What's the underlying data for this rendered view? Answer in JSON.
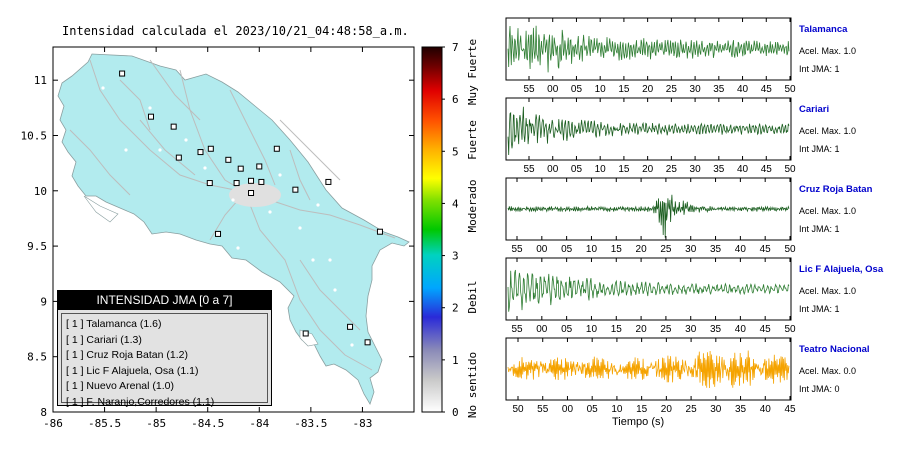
{
  "map": {
    "title": "Intensidad calculada el 2023/10/21_04:48:58_a.m.",
    "x_ticks": [
      "-86",
      "-85.5",
      "-85",
      "-84.5",
      "-84",
      "-83.5",
      "-83"
    ],
    "y_ticks": [
      "11",
      "10.5",
      "10",
      "9.5",
      "9",
      "8.5",
      "8"
    ],
    "land_color": "#b2ebee",
    "station_icon": "square-marker-icon"
  },
  "colorbar": {
    "ticks": [
      "0",
      "1",
      "2",
      "3",
      "4",
      "5",
      "6",
      "7"
    ],
    "labels": [
      "No sentido",
      "Debil",
      "Moderado",
      "Fuerte",
      "Muy Fuerte"
    ]
  },
  "legend": {
    "header": "INTENSIDAD JMA [0 a 7]",
    "items": [
      "[ 1 ]  Talamanca (1.6)",
      "[ 1 ]  Cariari (1.3)",
      "[ 1 ]  Cruz Roja Batan (1.2)",
      "[ 1 ]  Lic F Alajuela, Osa (1.1)",
      "[ 1 ]  Nuevo Arenal (1.0)",
      "[ 1 ]  F. Naranjo,Corredores (1.1)"
    ]
  },
  "stations": [
    {
      "name": "Talamanca",
      "acel": "Acel. Max. 1.0",
      "int": "Int JMA: 1",
      "color": "#2e7d32",
      "ticks": [
        "55",
        "00",
        "05",
        "10",
        "15",
        "20",
        "25",
        "30",
        "35",
        "40",
        "45",
        "50"
      ]
    },
    {
      "name": "Cariari",
      "acel": "Acel. Max. 1.0",
      "int": "Int JMA: 1",
      "color": "#1b5e20",
      "ticks": [
        "55",
        "00",
        "05",
        "10",
        "15",
        "20",
        "25",
        "30",
        "35",
        "40",
        "45",
        "50"
      ]
    },
    {
      "name": "Cruz Roja Batan",
      "acel": "Acel. Max. 1.0",
      "int": "Int JMA: 1",
      "color": "#1b5e20",
      "ticks": [
        "55",
        "00",
        "05",
        "10",
        "15",
        "20",
        "25",
        "30",
        "35",
        "40",
        "45",
        "50"
      ]
    },
    {
      "name": "Lic F Alajuela, Osa",
      "acel": "Acel. Max. 1.0",
      "int": "Int JMA: 1",
      "color": "#2e7d32",
      "ticks": [
        "55",
        "00",
        "05",
        "10",
        "15",
        "20",
        "25",
        "30",
        "35",
        "40",
        "45",
        "50"
      ]
    },
    {
      "name": "Teatro Nacional",
      "acel": "Acel. Max. 0.0",
      "int": "Int JMA: 0",
      "color": "#f5a300",
      "ticks": [
        "50",
        "55",
        "00",
        "05",
        "10",
        "15",
        "20",
        "25",
        "30",
        "35",
        "40",
        "45"
      ]
    }
  ],
  "x_axis_label": "Tiempo (s)",
  "chart_data": [
    {
      "type": "scatter",
      "title": "Intensidad calculada el 2023/10/21_04:48:58_a.m.",
      "xlim": [
        -86,
        -82.5
      ],
      "ylim": [
        8,
        11.3
      ],
      "x": [
        -85.33,
        -85.05,
        -84.83,
        -84.78,
        -84.47,
        -84.3,
        -84.18,
        -84.0,
        -83.98,
        -84.08,
        -83.83,
        -84.48,
        -84.22,
        -84.57,
        -84.08,
        -83.65,
        -83.33,
        -82.83,
        -84.4,
        -83.55,
        -83.12,
        -82.95
      ],
      "y": [
        11.06,
        10.67,
        10.58,
        10.3,
        10.38,
        10.28,
        10.2,
        10.22,
        10.08,
        10.09,
        10.38,
        10.07,
        10.07,
        10.35,
        9.98,
        10.01,
        10.08,
        9.63,
        9.61,
        8.71,
        8.77,
        8.63
      ]
    },
    {
      "type": "line",
      "name": "Talamanca",
      "ylabel": "Acel. Max. 1.0"
    },
    {
      "type": "line",
      "name": "Cariari",
      "ylabel": "Acel. Max. 1.0"
    },
    {
      "type": "line",
      "name": "Cruz Roja Batan",
      "ylabel": "Acel. Max. 1.0"
    },
    {
      "type": "line",
      "name": "Lic F Alajuela, Osa",
      "ylabel": "Acel. Max. 1.0"
    },
    {
      "type": "line",
      "name": "Teatro Nacional",
      "ylabel": "Acel. Max. 0.0"
    }
  ]
}
